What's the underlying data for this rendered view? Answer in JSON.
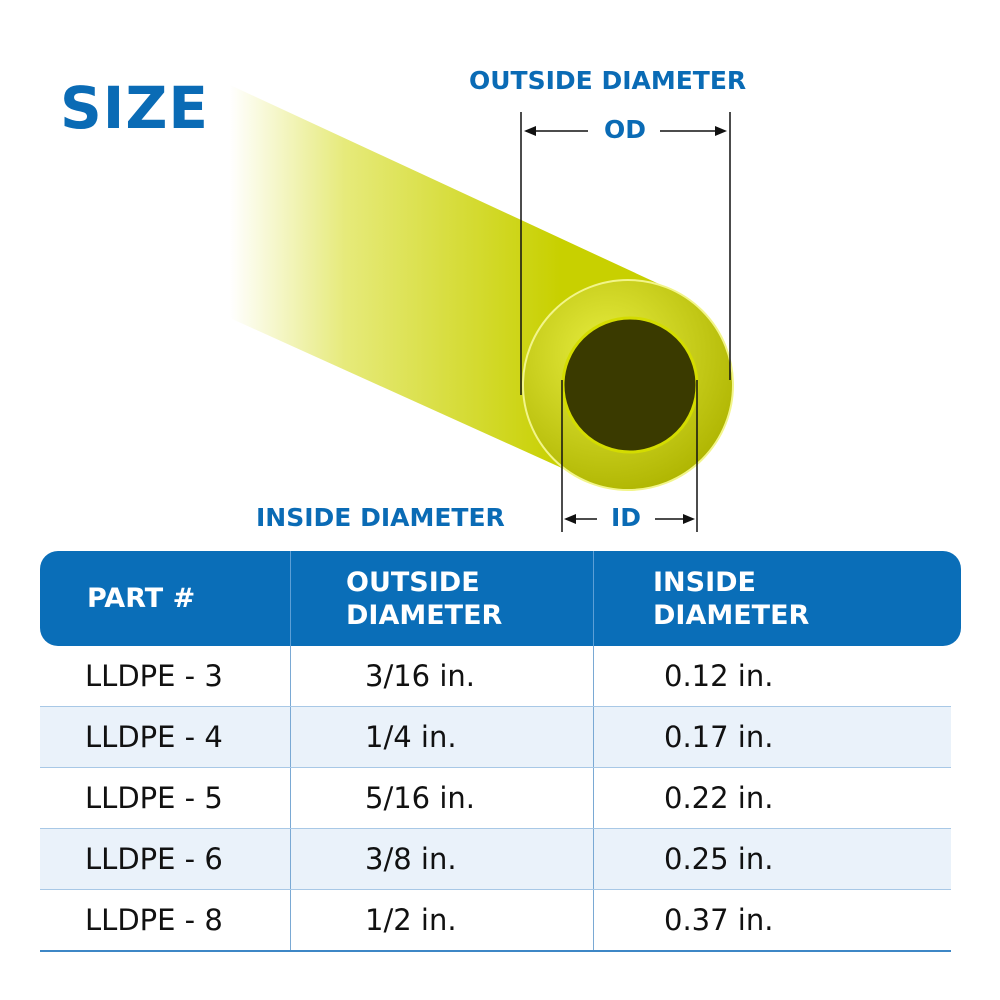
{
  "title": "SIZE",
  "diagram": {
    "outside_label": "OUTSIDE DIAMETER",
    "od_abbr": "OD",
    "inside_label": "INSIDE DIAMETER",
    "id_abbr": "ID",
    "tube_color": "#d7e000",
    "accent_color": "#0a6bb5"
  },
  "table": {
    "headers": [
      "PART #",
      "OUTSIDE DIAMETER",
      "INSIDE DIAMETER"
    ],
    "header_lines": {
      "outside": [
        "OUTSIDE",
        "DIAMETER"
      ],
      "inside": [
        "INSIDE",
        "DIAMETER"
      ]
    },
    "rows": [
      {
        "part": "LLDPE - 3",
        "od": "3/16 in.",
        "id": "0.12 in."
      },
      {
        "part": "LLDPE - 4",
        "od": "1/4 in.",
        "id": "0.17 in."
      },
      {
        "part": "LLDPE - 5",
        "od": "5/16 in.",
        "id": "0.22 in."
      },
      {
        "part": "LLDPE - 6",
        "od": "3/8 in.",
        "id": "0.25 in."
      },
      {
        "part": "LLDPE - 8",
        "od": "1/2 in.",
        "id": "0.37 in."
      }
    ]
  }
}
